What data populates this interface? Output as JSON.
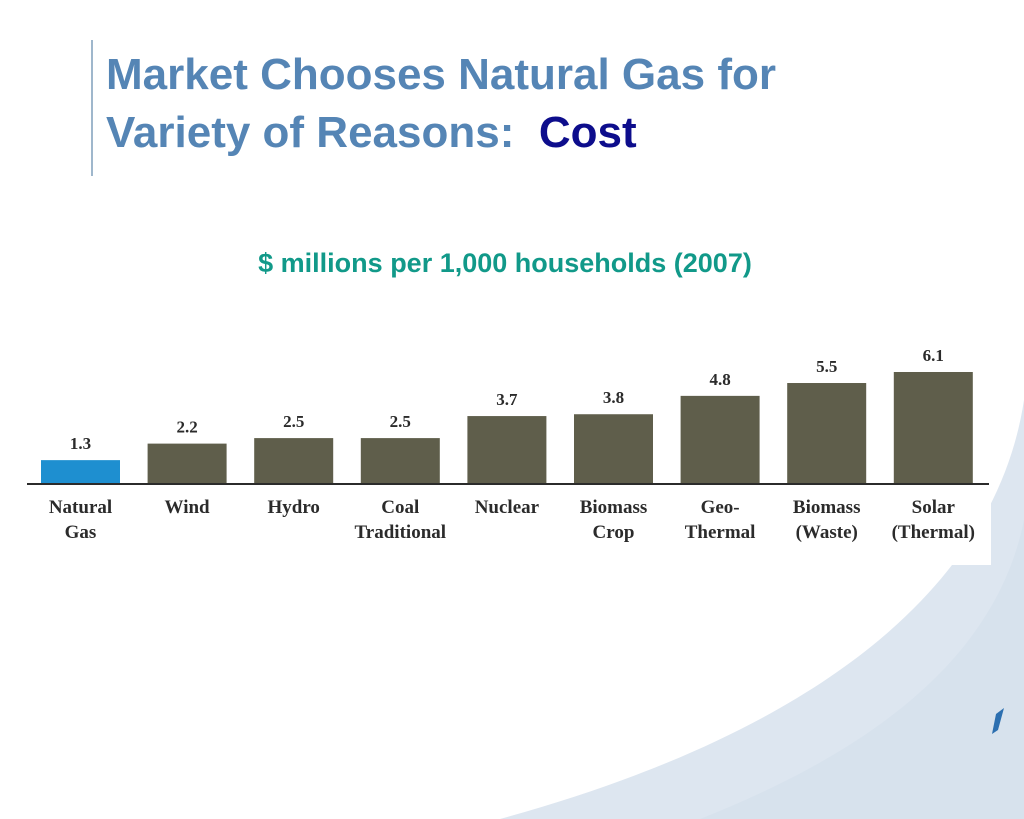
{
  "slide": {
    "title_line1": "Market Chooses Natural Gas for",
    "title_line2": "Variety of Reasons:",
    "title_accent": "Cost"
  },
  "colors": {
    "title": "#5585b5",
    "accent": "#0d0d8c",
    "subtitle": "#119989",
    "highlight_bar": "#1e8fd0",
    "bar": "#5f5e4b",
    "background_shape": "#dde6f0"
  },
  "chart_data": {
    "type": "bar",
    "title": "$ millions per 1,000 households (2007)",
    "categories": [
      [
        "Natural",
        "Gas"
      ],
      [
        "Wind"
      ],
      [
        "Hydro"
      ],
      [
        "Coal",
        "Traditional"
      ],
      [
        "Nuclear"
      ],
      [
        "Biomass",
        "Crop"
      ],
      [
        "Geo-",
        "Thermal"
      ],
      [
        "Biomass",
        "(Waste)"
      ],
      [
        "Solar",
        "(Thermal)"
      ]
    ],
    "values": [
      1.3,
      2.2,
      2.5,
      2.5,
      3.7,
      3.8,
      4.8,
      5.5,
      6.1
    ],
    "value_labels": [
      "1.3",
      "2.2",
      "2.5",
      "2.5",
      "3.7",
      "3.8",
      "4.8",
      "5.5",
      "6.1"
    ],
    "highlight_index": 0,
    "ylim": [
      0,
      6.1
    ],
    "grid": false,
    "xlabel": "",
    "ylabel": ""
  }
}
